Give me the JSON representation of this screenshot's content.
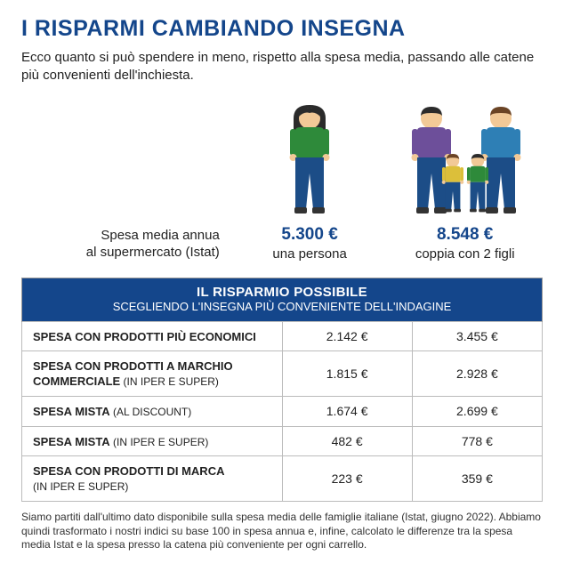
{
  "colors": {
    "brand_blue": "#14468b",
    "header_bg": "#14468b",
    "person_shirt": "#2e8a3a",
    "person_pants": "#1c4d87",
    "skin": "#f2c997",
    "hair_dark": "#2b2b2b",
    "hair_brown": "#6b4425",
    "adult_m_shirt": "#6d4f9a",
    "adult_f_shirt": "#2e7fb5",
    "child_shirt": "#dcbf3a",
    "child2_shirt": "#2e8a3a"
  },
  "title": "I RISPARMI CAMBIANDO INSEGNA",
  "subtitle": "Ecco quanto si può spendere in meno, rispetto alla spesa media, passando alle catene più convenienti dell'inchiesta.",
  "top": {
    "label_line1": "Spesa media annua",
    "label_line2": "al supermercato (Istat)",
    "single_amount": "5.300 €",
    "single_caption": "una persona",
    "family_amount": "8.548 €",
    "family_caption": "coppia con 2 figli"
  },
  "table": {
    "header_line1": "IL RISPARMIO POSSIBILE",
    "header_line2": "SCEGLIENDO L'INSEGNA PIÙ CONVENIENTE DELL'INDAGINE",
    "rows": [
      {
        "label_main": "SPESA CON PRODOTTI PIÙ ECONOMICI",
        "label_sub": "",
        "v1": "2.142 €",
        "v2": "3.455 €"
      },
      {
        "label_main": "SPESA CON  PRODOTTI A MARCHIO COMMERCIALE",
        "label_sub": " (IN IPER E SUPER)",
        "v1": "1.815 €",
        "v2": "2.928 €"
      },
      {
        "label_main": "SPESA MISTA",
        "label_sub": " (AL DISCOUNT)",
        "v1": "1.674 €",
        "v2": "2.699 €"
      },
      {
        "label_main": "SPESA MISTA",
        "label_sub": " (IN IPER E SUPER)",
        "v1": "482 €",
        "v2": "778 €"
      },
      {
        "label_main": "SPESA CON PRODOTTI DI MARCA",
        "label_sub": "(IN IPER E SUPER)",
        "v1": "223 €",
        "v2": "359 €",
        "sub_newline": true
      }
    ]
  },
  "footnote": "Siamo partiti dall'ultimo dato disponibile sulla spesa media delle famiglie italiane (Istat, giugno 2022). Abbiamo quindi trasformato i nostri indici su base 100 in spesa annua e, infine, calcolato le differenze tra la spesa media Istat e la spesa presso la catena più conveniente per ogni carrello."
}
